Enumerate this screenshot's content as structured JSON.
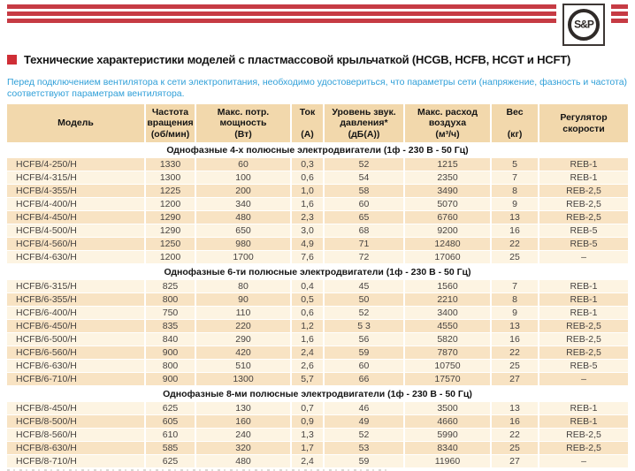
{
  "header": {
    "logo_text": "S&P",
    "title": "Технические характеристики моделей с пластмассовой крыльчаткой (HCGB, HCFB, HCGT и HCFT)",
    "intro": "Перед подключением вентилятора к сети электропитания, необходимо удостовериться, что параметры сети (напряжение, фазность и частота) соответствуют параметрам вентилятора."
  },
  "colors": {
    "brand_red": "#c63b44",
    "bullet_red": "#cf2e36",
    "info_blue": "#2f9fd8",
    "header_tan": "#f2d8ac",
    "row_peach": "#f8e3c3",
    "row_cream": "#fdf4e2"
  },
  "table": {
    "columns": [
      {
        "key": "model",
        "lines": [
          "Модель"
        ]
      },
      {
        "key": "rpm",
        "lines": [
          "Частота",
          "вращения",
          "(об/мин)"
        ]
      },
      {
        "key": "power",
        "lines": [
          "Макс. потр.",
          "мощность",
          "(Вт)"
        ]
      },
      {
        "key": "current",
        "lines": [
          "Ток",
          "",
          "(А)"
        ]
      },
      {
        "key": "noise",
        "lines": [
          "Уровень звук.",
          "давления*",
          "(дБ(А))"
        ]
      },
      {
        "key": "airflow",
        "lines": [
          "Макс. расход",
          "воздуха",
          "(м³/ч)"
        ]
      },
      {
        "key": "weight",
        "lines": [
          "Вес",
          "",
          "(кг)"
        ]
      },
      {
        "key": "regulator",
        "lines": [
          "Регулятор",
          "скорости"
        ]
      }
    ],
    "sections": [
      {
        "title": "Однофазные 4-х полюсные электродвигатели (1ф - 230 В - 50 Гц)",
        "rows": [
          [
            "HCFB/4-250/H",
            "1330",
            "60",
            "0,3",
            "52",
            "1215",
            "5",
            "REB-1"
          ],
          [
            "HCFB/4-315/H",
            "1300",
            "100",
            "0,6",
            "54",
            "2350",
            "7",
            "REB-1"
          ],
          [
            "HCFB/4-355/H",
            "1225",
            "200",
            "1,0",
            "58",
            "3490",
            "8",
            "REB-2,5"
          ],
          [
            "HCFB/4-400/H",
            "1200",
            "340",
            "1,6",
            "60",
            "5070",
            "9",
            "REB-2,5"
          ],
          [
            "HCFB/4-450/H",
            "1290",
            "480",
            "2,3",
            "65",
            "6760",
            "13",
            "REB-2,5"
          ],
          [
            "HCFB/4-500/H",
            "1290",
            "650",
            "3,0",
            "68",
            "9200",
            "16",
            "REB-5"
          ],
          [
            "HCFB/4-560/H",
            "1250",
            "980",
            "4,9",
            "71",
            "12480",
            "22",
            "REB-5"
          ],
          [
            "HCFB/4-630/H",
            "1200",
            "1700",
            "7,6",
            "72",
            "17060",
            "25",
            "–"
          ]
        ]
      },
      {
        "title": "Однофазные 6-ти полюсные электродвигатели (1ф - 230 В - 50 Гц)",
        "rows": [
          [
            "HCFB/6-315/H",
            "825",
            "80",
            "0,4",
            "45",
            "1560",
            "7",
            "REB-1"
          ],
          [
            "HCFB/6-355/H",
            "800",
            "90",
            "0,5",
            "50",
            "2210",
            "8",
            "REB-1"
          ],
          [
            "HCFB/6-400/H",
            "750",
            "110",
            "0,6",
            "52",
            "3400",
            "9",
            "REB-1"
          ],
          [
            "HCFB/6-450/H",
            "835",
            "220",
            "1,2",
            "5 3",
            "4550",
            "13",
            "REB-2,5"
          ],
          [
            "HCFB/6-500/H",
            "840",
            "290",
            "1,6",
            "56",
            "5820",
            "16",
            "REB-2,5"
          ],
          [
            "HCFB/6-560/H",
            "900",
            "420",
            "2,4",
            "59",
            "7870",
            "22",
            "REB-2,5"
          ],
          [
            "HCFB/6-630/H",
            "800",
            "510",
            "2,6",
            "60",
            "10750",
            "25",
            "REB-5"
          ],
          [
            "HCFB/6-710/H",
            "900",
            "1300",
            "5,7",
            "66",
            "17570",
            "27",
            "–"
          ]
        ]
      },
      {
        "title": "Однофазные 8-ми полюсные электродвигатели (1ф - 230 В - 50 Гц)",
        "rows": [
          [
            "HCFB/8-450/H",
            "625",
            "130",
            "0,7",
            "46",
            "3500",
            "13",
            "REB-1"
          ],
          [
            "HCFB/8-500/H",
            "605",
            "160",
            "0,9",
            "49",
            "4660",
            "16",
            "REB-1"
          ],
          [
            "HCFB/8-560/H",
            "610",
            "240",
            "1,3",
            "52",
            "5990",
            "22",
            "REB-2,5"
          ],
          [
            "HCFB/8-630/H",
            "585",
            "320",
            "1,7",
            "53",
            "8340",
            "25",
            "REB-2,5"
          ],
          [
            "HCFB/8-710/H",
            "625",
            "480",
            "2,4",
            "59",
            "11960",
            "27",
            "–"
          ]
        ]
      }
    ]
  }
}
